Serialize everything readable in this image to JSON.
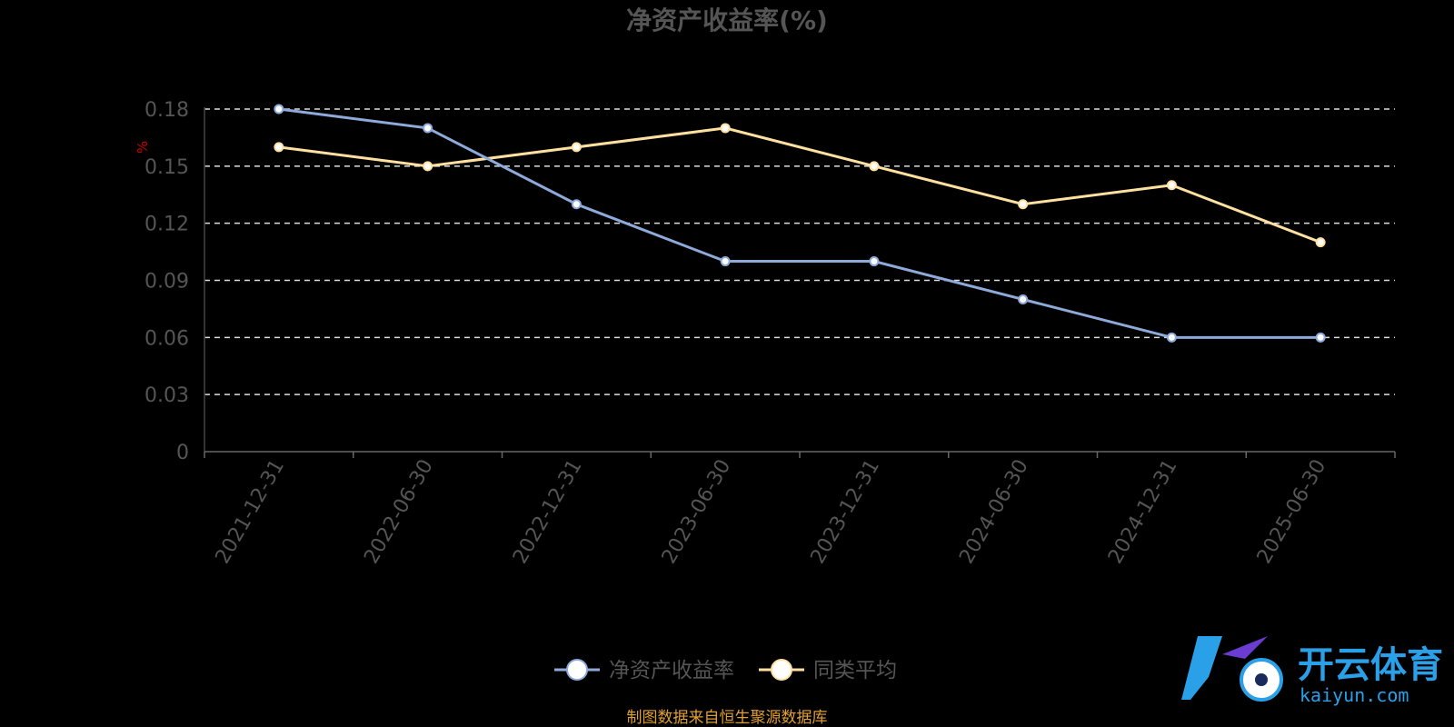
{
  "chart_data": {
    "type": "line",
    "title": "净资产收益率(%)",
    "ylabel": "%",
    "xlabel": "",
    "categories": [
      "2021-12-31",
      "2022-06-30",
      "2022-12-31",
      "2023-06-30",
      "2023-12-31",
      "2024-06-30",
      "2024-12-31",
      "2025-06-30"
    ],
    "yticks": [
      "0",
      "0.03",
      "0.06",
      "0.09",
      "0.12",
      "0.15",
      "0.18"
    ],
    "ylim": [
      0,
      0.18
    ],
    "grid": true,
    "legend_position": "bottom",
    "series": [
      {
        "name": "净资产收益率",
        "color": "#8eaadb",
        "values": [
          0.18,
          0.17,
          0.13,
          0.1,
          0.1,
          0.08,
          0.06,
          0.06
        ]
      },
      {
        "name": "同类平均",
        "color": "#ffe0a0",
        "values": [
          0.16,
          0.15,
          0.16,
          0.17,
          0.15,
          0.13,
          0.14,
          0.11
        ]
      }
    ]
  },
  "source": "制图数据来自恒生聚源数据库",
  "watermark": {
    "name": "开云体育",
    "url": "kaiyun.com"
  }
}
